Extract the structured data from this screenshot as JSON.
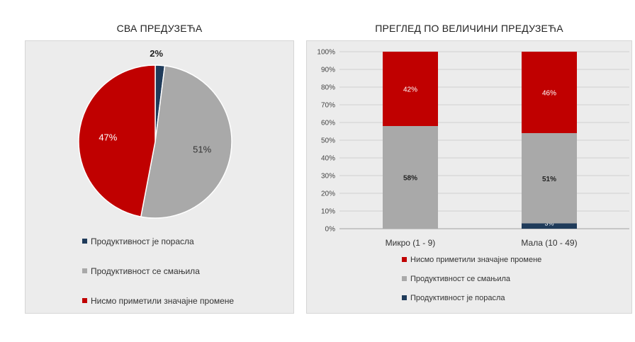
{
  "colors": {
    "grew": "#1f3b5a",
    "decreased": "#a9a9a9",
    "no_change": "#c00000"
  },
  "chart_data": [
    {
      "type": "pie",
      "title": "СВА ПРЕДУЗЕЋА",
      "slices": [
        {
          "name": "Продуктивност је порасла",
          "value": 2,
          "label": "2%",
          "color": "#1f3b5a"
        },
        {
          "name": "Продуктивност се смањила",
          "value": 51,
          "label": "51%",
          "color": "#a9a9a9"
        },
        {
          "name": "Нисмо приметили значајне промене",
          "value": 47,
          "label": "47%",
          "color": "#c00000"
        }
      ],
      "legend": [
        "Продуктивност је порасла",
        "Продуктивност се смањила",
        "Нисмо приметили значајне промене"
      ],
      "legend_position": "bottom"
    },
    {
      "type": "bar",
      "stacked": true,
      "title": "ПРЕГЛЕД ПО ВЕЛИЧИНИ ПРЕДУЗЕЋА",
      "categories": [
        "Микро (1 - 9)",
        "Мала (10 - 49)"
      ],
      "series": [
        {
          "name": "Продуктивност је порасла",
          "values": [
            0,
            3
          ],
          "labels": [
            "",
            "3%"
          ],
          "color": "#1f3b5a"
        },
        {
          "name": "Продуктивност се смањила",
          "values": [
            58,
            51
          ],
          "labels": [
            "58%",
            "51%"
          ],
          "color": "#a9a9a9"
        },
        {
          "name": "Нисмо приметили значајне промене",
          "values": [
            42,
            46
          ],
          "labels": [
            "42%",
            "46%"
          ],
          "color": "#c00000"
        }
      ],
      "ylim": [
        0,
        100
      ],
      "yticks": [
        "0%",
        "10%",
        "20%",
        "30%",
        "40%",
        "50%",
        "60%",
        "70%",
        "80%",
        "90%",
        "100%"
      ],
      "grid": true,
      "legend": [
        "Нисмо приметили значајне промене",
        "Продуктивност се смањила",
        "Продуктивност је порасла"
      ],
      "legend_position": "bottom"
    }
  ]
}
